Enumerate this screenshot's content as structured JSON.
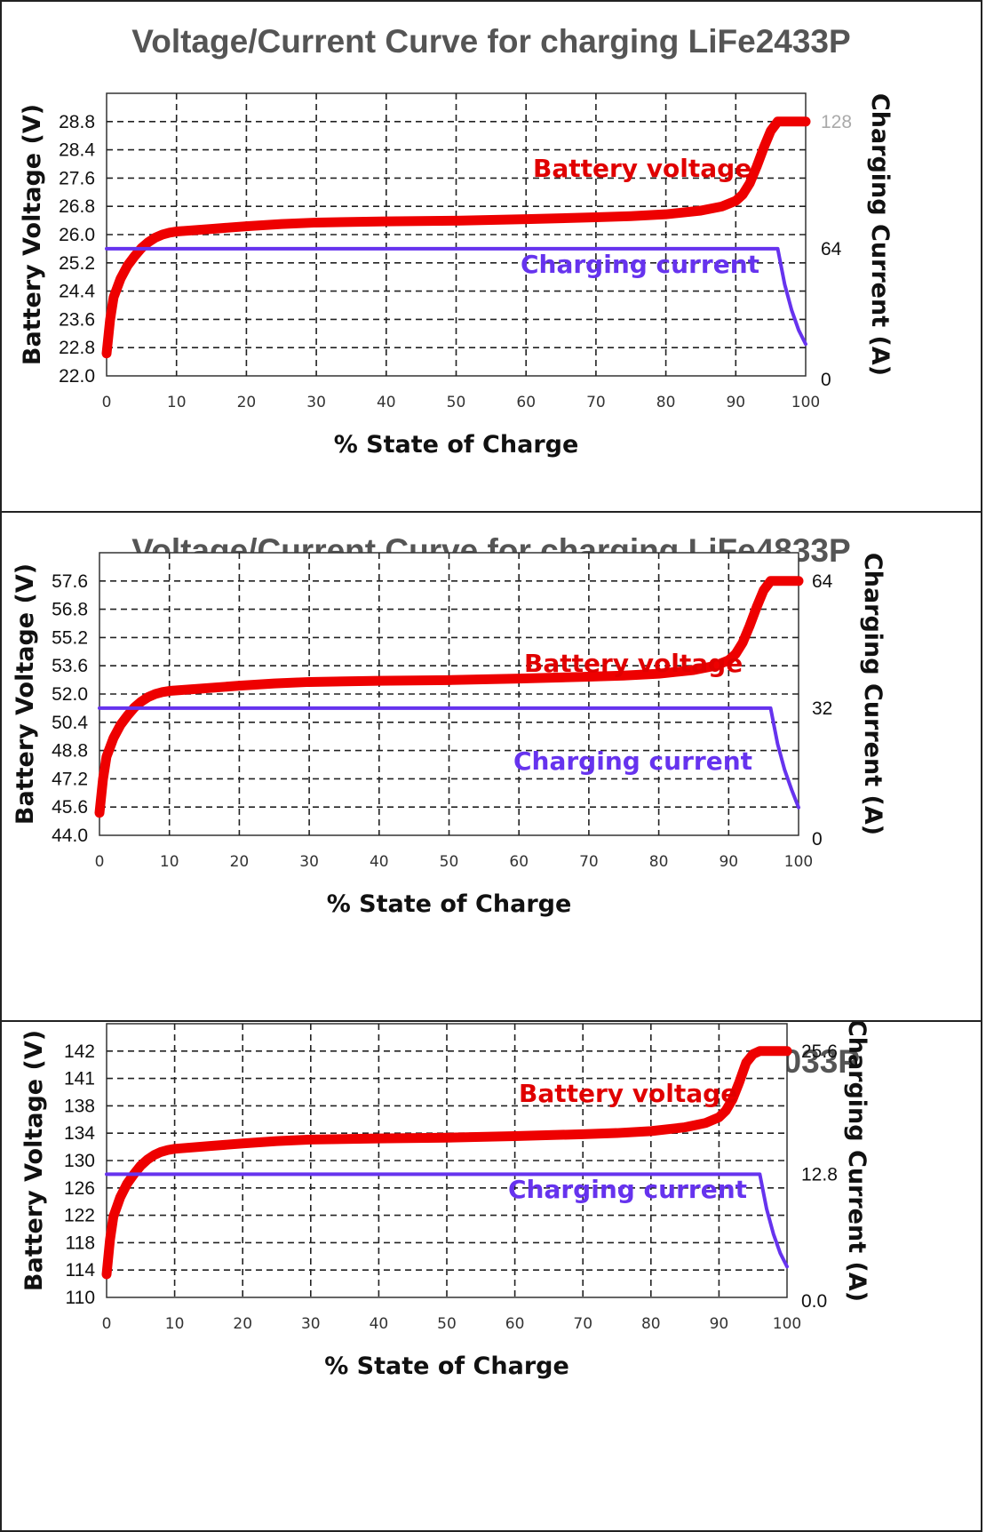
{
  "chart_data": [
    {
      "type": "line",
      "title": "Voltage/Current Curve for charging LiFe2433P",
      "xlabel": "% State of Charge",
      "ylabel": "Battery Voltage (V)",
      "y2label": "Charging Current (A)",
      "x_ticks": [
        "0",
        "10",
        "20",
        "30",
        "40",
        "50",
        "60",
        "70",
        "80",
        "90",
        "100"
      ],
      "y_ticks": [
        "22.0",
        "22.8",
        "23.6",
        "24.4",
        "25.2",
        "26.0",
        "26.8",
        "27.6",
        "28.4",
        "28.8"
      ],
      "y2_ticks": [
        "0",
        "64",
        "128"
      ],
      "xlim": [
        0,
        100
      ],
      "grid": true,
      "series": [
        {
          "name": "Battery voltage",
          "axis": "left",
          "color": "#ee0000",
          "x": [
            0,
            0.5,
            1,
            2,
            3,
            4,
            5,
            6,
            7,
            8,
            9,
            10,
            15,
            20,
            25,
            30,
            40,
            50,
            60,
            70,
            75,
            80,
            85,
            88,
            90,
            91,
            92,
            93,
            94,
            95,
            96,
            97,
            98,
            100
          ],
          "y": [
            22.6,
            23.5,
            24.1,
            24.6,
            24.95,
            25.2,
            25.42,
            25.58,
            25.7,
            25.78,
            25.83,
            25.86,
            25.93,
            26.0,
            26.06,
            26.1,
            26.13,
            26.15,
            26.19,
            26.24,
            26.27,
            26.32,
            26.42,
            26.53,
            26.68,
            26.85,
            27.15,
            27.6,
            28.1,
            28.55,
            28.8,
            28.8,
            28.8,
            28.8
          ]
        },
        {
          "name": "Charging current",
          "axis": "right",
          "color": "#6633ee",
          "x": [
            0,
            96,
            97,
            98,
            99,
            100
          ],
          "y": [
            64,
            64,
            46,
            33,
            23,
            16
          ]
        }
      ]
    },
    {
      "type": "line",
      "title": "Voltage/Current Curve for charging LiFe4833P",
      "xlabel": "% State of Charge",
      "ylabel": "Battery Voltage (V)",
      "y2label": "Charging Current (A)",
      "x_ticks": [
        "0",
        "10",
        "20",
        "30",
        "40",
        "50",
        "60",
        "70",
        "80",
        "90",
        "100"
      ],
      "y_ticks": [
        "44.0",
        "45.6",
        "47.2",
        "48.8",
        "50.4",
        "52.0",
        "53.6",
        "55.2",
        "56.8",
        "57.6"
      ],
      "y2_ticks": [
        "0",
        "32",
        "64"
      ],
      "xlim": [
        0,
        100
      ],
      "grid": true,
      "series": [
        {
          "name": "Battery voltage",
          "axis": "left",
          "color": "#ee0000",
          "x": [
            0,
            0.5,
            1,
            2,
            3,
            4,
            5,
            6,
            7,
            8,
            9,
            10,
            15,
            20,
            25,
            30,
            40,
            50,
            60,
            70,
            75,
            80,
            85,
            88,
            90,
            91,
            92,
            93,
            94,
            95,
            96,
            97,
            98,
            100
          ],
          "y": [
            45.2,
            47.0,
            48.2,
            49.2,
            49.9,
            50.4,
            50.84,
            51.16,
            51.4,
            51.56,
            51.66,
            51.72,
            51.86,
            52.0,
            52.12,
            52.2,
            52.26,
            52.3,
            52.38,
            52.48,
            52.54,
            52.64,
            52.84,
            53.06,
            53.36,
            53.7,
            54.3,
            55.2,
            56.2,
            57.1,
            57.6,
            57.6,
            57.6,
            57.6
          ]
        },
        {
          "name": "Charging current",
          "axis": "right",
          "color": "#6633ee",
          "x": [
            0,
            96,
            97,
            98,
            99,
            100
          ],
          "y": [
            32,
            32,
            23,
            16.5,
            11.5,
            7
          ]
        }
      ]
    },
    {
      "type": "line",
      "title": "Voltage/Current Curve for charging LiFe12033P",
      "xlabel": "% State of Charge",
      "ylabel": "Battery Voltage (V)",
      "y2label": "Charging Current (A)",
      "x_ticks": [
        "0",
        "10",
        "20",
        "30",
        "40",
        "50",
        "60",
        "70",
        "80",
        "90",
        "100"
      ],
      "y_ticks": [
        "110",
        "114",
        "118",
        "122",
        "126",
        "130",
        "134",
        "138",
        "141",
        "142"
      ],
      "y2_ticks": [
        "0.0",
        "12.8",
        "25.6"
      ],
      "xlim": [
        0,
        100
      ],
      "grid": true,
      "series": [
        {
          "name": "Battery voltage",
          "axis": "left",
          "color": "#ee0000",
          "x": [
            0,
            0.5,
            1,
            2,
            3,
            4,
            5,
            6,
            7,
            8,
            9,
            10,
            15,
            20,
            25,
            30,
            40,
            50,
            60,
            70,
            75,
            80,
            85,
            88,
            90,
            91,
            92,
            93,
            94,
            95,
            96,
            97,
            98,
            100
          ],
          "y": [
            113,
            117.5,
            120.5,
            123,
            124.75,
            126,
            127.1,
            127.9,
            128.5,
            128.9,
            129.15,
            129.3,
            129.65,
            130.0,
            130.3,
            130.5,
            130.65,
            130.75,
            130.95,
            131.2,
            131.35,
            131.6,
            132.1,
            132.65,
            133.4,
            134.25,
            135.75,
            138.0,
            140.5,
            141.6,
            142,
            142,
            142,
            142
          ]
        },
        {
          "name": "Charging current",
          "axis": "right",
          "color": "#6633ee",
          "x": [
            0,
            96,
            97,
            98,
            99,
            100
          ],
          "y": [
            12.8,
            12.8,
            9.2,
            6.6,
            4.6,
            3.2
          ]
        }
      ]
    }
  ]
}
